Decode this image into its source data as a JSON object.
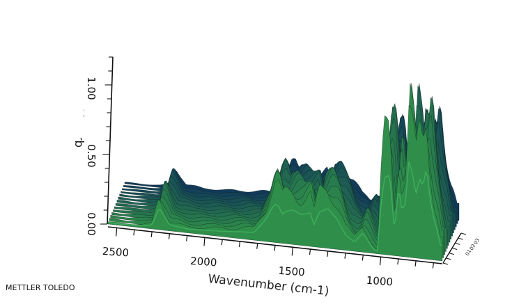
{
  "brand": "METTLER TOLEDO",
  "chart_data": {
    "type": "surface-3d",
    "xlabel": "Wavenumber (cm-1)",
    "zlabel": "Absorbance",
    "x_ticks": [
      "2500",
      "2000",
      "1500",
      "1000"
    ],
    "z_ticks": [
      "0.00",
      "0.50",
      "1.00"
    ],
    "xlim": [
      2550,
      650
    ],
    "zlim": [
      0.0,
      1.2
    ],
    "depth_axis_tick_labels": [
      "01",
      "02",
      "03"
    ],
    "colors": {
      "surface_front": "#2f8f4a",
      "surface_mid": "#1f6b45",
      "surface_back": "#123a5a",
      "edge": "#0b1f18",
      "axis": "#111111"
    },
    "spectrum": {
      "x": [
        2550,
        2450,
        2350,
        2300,
        2260,
        2240,
        2200,
        2100,
        2000,
        1900,
        1800,
        1720,
        1650,
        1620,
        1600,
        1580,
        1560,
        1540,
        1500,
        1450,
        1400,
        1380,
        1350,
        1300,
        1250,
        1200,
        1150,
        1100,
        1050,
        1020,
        1000,
        980,
        950,
        920,
        900,
        880,
        860,
        840,
        820,
        800,
        780,
        760,
        740,
        720,
        700,
        680,
        660
      ],
      "z": [
        0.02,
        0.02,
        0.03,
        0.05,
        0.28,
        0.22,
        0.08,
        0.05,
        0.06,
        0.07,
        0.09,
        0.1,
        0.3,
        0.44,
        0.5,
        0.48,
        0.38,
        0.42,
        0.45,
        0.4,
        0.44,
        0.28,
        0.46,
        0.52,
        0.4,
        0.2,
        0.12,
        0.25,
        0.08,
        0.02,
        0.6,
        1.0,
        1.05,
        0.3,
        0.92,
        0.6,
        0.7,
        1.25,
        1.1,
        0.82,
        1.05,
        0.95,
        1.2,
        0.8,
        0.55,
        0.4,
        0.2
      ]
    }
  }
}
